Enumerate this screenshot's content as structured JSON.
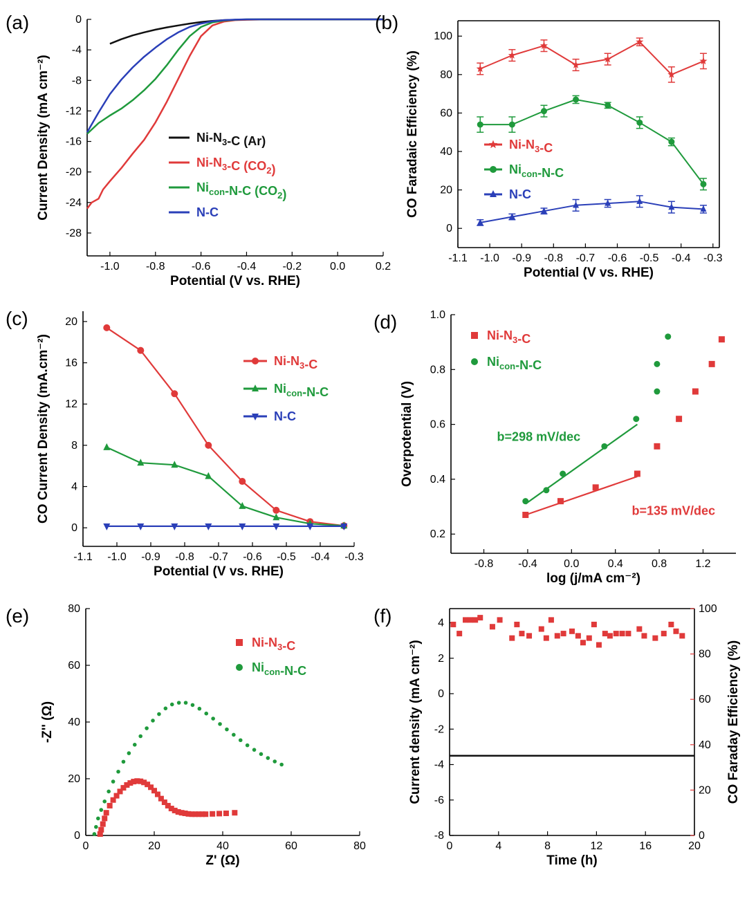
{
  "colors": {
    "black": "#111111",
    "red": "#e03a3a",
    "green": "#1f9a3c",
    "blue": "#2a3fb8",
    "red_axis": "#e03a3a"
  },
  "chart_data": [
    {
      "panel": "(a)",
      "type": "line",
      "xlabel": "Potential (V vs. RHE)",
      "ylabel": "Current Density (mA cm⁻²)",
      "xlim": [
        -1.1,
        0.2
      ],
      "ylim": [
        -31,
        0
      ],
      "xticks": [
        -1.0,
        -0.8,
        -0.6,
        -0.4,
        -0.2,
        0.0,
        0.2
      ],
      "xtick_labels": [
        "-1.0",
        "-0.8",
        "-0.6",
        "-0.4",
        "-0.2",
        "0.0",
        "0.2"
      ],
      "yticks": [
        0,
        -4,
        -8,
        -12,
        -16,
        -20,
        -24,
        -28
      ],
      "ytick_labels": [
        "0",
        "-4",
        "-8",
        "-12",
        "-16",
        "-20",
        "-24",
        "-28"
      ],
      "legend_position": "center",
      "series": [
        {
          "name": "Ni-N₃-C (Ar)",
          "color": "#111111",
          "x": [
            -1.0,
            -0.95,
            -0.9,
            -0.85,
            -0.8,
            -0.75,
            -0.7,
            -0.65,
            -0.6,
            -0.55,
            -0.5,
            -0.45,
            -0.4,
            -0.3,
            -0.2,
            -0.1,
            0.0,
            0.1,
            0.2
          ],
          "y": [
            -3.2,
            -2.6,
            -2.1,
            -1.7,
            -1.35,
            -1.05,
            -0.8,
            -0.55,
            -0.35,
            -0.2,
            -0.1,
            -0.05,
            -0.02,
            0,
            0,
            0,
            0,
            0,
            0
          ]
        },
        {
          "name": "Ni-N₃-C (CO₂)",
          "color": "#e03a3a",
          "x": [
            -1.1,
            -1.08,
            -1.05,
            -1.03,
            -1.0,
            -0.95,
            -0.9,
            -0.85,
            -0.8,
            -0.75,
            -0.7,
            -0.65,
            -0.6,
            -0.55,
            -0.5,
            -0.45,
            -0.4,
            -0.3,
            -0.2,
            -0.1,
            0.0,
            0.1,
            0.2
          ],
          "y": [
            -24.8,
            -24.0,
            -23.5,
            -22.3,
            -21.2,
            -19.5,
            -17.6,
            -15.8,
            -13.5,
            -10.8,
            -7.8,
            -4.8,
            -2.2,
            -0.8,
            -0.3,
            -0.1,
            -0.05,
            0,
            0,
            0,
            0,
            0,
            0
          ]
        },
        {
          "name": "Ni_con-N-C (CO₂)",
          "color": "#1f9a3c",
          "x": [
            -1.1,
            -1.05,
            -1.0,
            -0.95,
            -0.9,
            -0.85,
            -0.8,
            -0.75,
            -0.7,
            -0.65,
            -0.6,
            -0.55,
            -0.5,
            -0.45,
            -0.4,
            -0.3,
            -0.2,
            -0.1,
            0.0,
            0.1,
            0.2
          ],
          "y": [
            -15.0,
            -13.6,
            -12.6,
            -11.7,
            -10.6,
            -9.3,
            -7.8,
            -6.0,
            -4.0,
            -2.2,
            -1.0,
            -0.4,
            -0.15,
            -0.05,
            0,
            0,
            0,
            0,
            0,
            0,
            0
          ]
        },
        {
          "name": "N-C",
          "color": "#2a3fb8",
          "x": [
            -1.1,
            -1.05,
            -1.0,
            -0.95,
            -0.9,
            -0.85,
            -0.8,
            -0.75,
            -0.7,
            -0.65,
            -0.6,
            -0.55,
            -0.5,
            -0.45,
            -0.4,
            -0.3,
            -0.2,
            -0.1,
            0.0,
            0.1,
            0.2
          ],
          "y": [
            -14.8,
            -12.2,
            -9.8,
            -7.9,
            -6.3,
            -4.9,
            -3.7,
            -2.6,
            -1.7,
            -1.0,
            -0.55,
            -0.25,
            -0.1,
            -0.04,
            0,
            0,
            0,
            0,
            0,
            0,
            0
          ]
        }
      ]
    },
    {
      "panel": "(b)",
      "type": "line",
      "xlabel": "Potential (V vs. RHE)",
      "ylabel": "CO Faradaic Efficiency (%)",
      "xlim": [
        -1.1,
        -0.28
      ],
      "ylim": [
        -10,
        108
      ],
      "xticks": [
        -1.1,
        -1.0,
        -0.9,
        -0.8,
        -0.7,
        -0.6,
        -0.5,
        -0.4,
        -0.3
      ],
      "xtick_labels": [
        "-1.1",
        "-1.0",
        "-0.9",
        "-0.8",
        "-0.7",
        "-0.6",
        "-0.5",
        "-0.4",
        "-0.3"
      ],
      "yticks": [
        0,
        20,
        40,
        60,
        80,
        100
      ],
      "ytick_labels": [
        "0",
        "20",
        "40",
        "60",
        "80",
        "100"
      ],
      "legend_position": "center-left",
      "x": [
        -1.03,
        -0.93,
        -0.83,
        -0.73,
        -0.63,
        -0.53,
        -0.43,
        -0.33
      ],
      "series": [
        {
          "name": "Ni-N₃-C",
          "color": "#e03a3a",
          "marker": "star",
          "y": [
            83,
            90,
            95,
            85,
            88,
            97,
            80,
            87
          ],
          "err": [
            3,
            3,
            3,
            3,
            3,
            2,
            4,
            4
          ]
        },
        {
          "name": "Ni_con-N-C",
          "color": "#1f9a3c",
          "marker": "circle",
          "y": [
            54,
            54,
            61,
            67,
            64,
            55,
            45,
            23
          ],
          "err": [
            4,
            4,
            3,
            2,
            1.5,
            3,
            2,
            3
          ]
        },
        {
          "name": "N-C",
          "color": "#2a3fb8",
          "marker": "triangle-up",
          "y": [
            3,
            6,
            9,
            12,
            13,
            14,
            11,
            10
          ],
          "err": [
            1.5,
            1.5,
            1.5,
            3,
            2,
            3,
            3,
            2
          ]
        }
      ]
    },
    {
      "panel": "(c)",
      "type": "line",
      "xlabel": "Potential (V vs. RHE)",
      "ylabel": "CO Current  Density (mA.cm⁻²)",
      "xlim": [
        -1.1,
        -0.3
      ],
      "ylim": [
        -1.8,
        21
      ],
      "xticks": [
        -1.1,
        -1.0,
        -0.9,
        -0.8,
        -0.7,
        -0.6,
        -0.5,
        -0.4,
        -0.3
      ],
      "xtick_labels": [
        "-1.1",
        "-1.0",
        "-0.9",
        "-0.8",
        "-0.7",
        "-0.6",
        "-0.5",
        "-0.4",
        "-0.3"
      ],
      "yticks": [
        0,
        4,
        8,
        12,
        16,
        20
      ],
      "ytick_labels": [
        "0",
        "4",
        "8",
        "12",
        "16",
        "20"
      ],
      "legend_position": "top-right",
      "x": [
        -1.03,
        -0.93,
        -0.83,
        -0.73,
        -0.63,
        -0.53,
        -0.43,
        -0.33
      ],
      "series": [
        {
          "name": "Ni-N₃-C",
          "color": "#e03a3a",
          "marker": "circle",
          "y": [
            19.4,
            17.2,
            13.0,
            8.0,
            4.5,
            1.7,
            0.6,
            0.2
          ]
        },
        {
          "name": "Ni_con-N-C",
          "color": "#1f9a3c",
          "marker": "triangle-up",
          "y": [
            7.8,
            6.3,
            6.1,
            5.0,
            2.1,
            1.0,
            0.4,
            0.2
          ]
        },
        {
          "name": "N-C",
          "color": "#2a3fb8",
          "marker": "triangle-down",
          "y": [
            0.15,
            0.15,
            0.15,
            0.15,
            0.15,
            0.15,
            0.15,
            0.15
          ]
        }
      ]
    },
    {
      "panel": "(d)",
      "type": "scatter",
      "xlabel": "log (j/mA cm⁻²)",
      "ylabel": "Overpotential (V)",
      "xlim": [
        -1.1,
        1.5
      ],
      "ylim": [
        0.13,
        1.0
      ],
      "xticks": [
        -0.8,
        -0.4,
        0.0,
        0.4,
        0.8,
        1.2
      ],
      "xtick_labels": [
        "-0.8",
        "-0.4",
        "0.0",
        "0.4",
        "0.8",
        "1.2"
      ],
      "yticks": [
        0.2,
        0.4,
        0.6,
        0.8,
        1.0
      ],
      "ytick_labels": [
        "0.2",
        "0.4",
        "0.6",
        "0.8",
        "1.0"
      ],
      "legend_position": "top-left",
      "series": [
        {
          "name": "Ni-N₃-C",
          "color": "#e03a3a",
          "marker": "square",
          "x": [
            -0.42,
            -0.1,
            0.22,
            0.6,
            0.78,
            0.98,
            1.13,
            1.28,
            1.37
          ],
          "y": [
            0.27,
            0.32,
            0.37,
            0.42,
            0.52,
            0.62,
            0.72,
            0.82,
            0.91
          ]
        },
        {
          "name": "Ni_con-N-C",
          "color": "#1f9a3c",
          "marker": "circle",
          "x": [
            -0.42,
            -0.23,
            -0.08,
            0.3,
            0.59,
            0.78,
            0.78,
            0.88
          ],
          "y": [
            0.32,
            0.36,
            0.42,
            0.52,
            0.62,
            0.72,
            0.82,
            0.92
          ]
        }
      ],
      "fits": [
        {
          "color": "#e03a3a",
          "x": [
            -0.42,
            0.6
          ],
          "y": [
            0.27,
            0.41
          ]
        },
        {
          "color": "#1f9a3c",
          "x": [
            -0.42,
            0.6
          ],
          "y": [
            0.31,
            0.6
          ]
        }
      ],
      "annotations": [
        {
          "text": "b=298 mV/dec",
          "color": "#1f9a3c",
          "x": -0.68,
          "y": 0.54
        },
        {
          "text": "b=135 mV/dec",
          "color": "#e03a3a",
          "x": 0.55,
          "y": 0.27
        }
      ]
    },
    {
      "panel": "(e)",
      "type": "scatter",
      "xlabel": "Z' (Ω)",
      "ylabel": "-Z'' (Ω)",
      "xlim": [
        0,
        80
      ],
      "ylim": [
        0,
        80
      ],
      "xticks": [
        0,
        20,
        40,
        60,
        80
      ],
      "xtick_labels": [
        "0",
        "20",
        "40",
        "60",
        "80"
      ],
      "yticks": [
        0,
        20,
        40,
        60,
        80
      ],
      "ytick_labels": [
        "0",
        "20",
        "40",
        "60",
        "80"
      ],
      "legend_position": "top-right",
      "series": [
        {
          "name": "Ni-N₃-C",
          "color": "#e03a3a",
          "marker": "square",
          "x": [
            4.2,
            4.5,
            5,
            5.5,
            6,
            7,
            8,
            9,
            10,
            11,
            12,
            13,
            14,
            15,
            16,
            17,
            18,
            19,
            20,
            21,
            22,
            23,
            24,
            25,
            26,
            27,
            28,
            29,
            30,
            31,
            32,
            33,
            34,
            35,
            37,
            39,
            41,
            43.5
          ],
          "y": [
            0.5,
            2,
            4,
            6,
            8,
            10.5,
            12.5,
            14,
            15.5,
            16.8,
            17.8,
            18.5,
            19,
            19.2,
            19.1,
            18.7,
            18,
            17,
            15.8,
            14.5,
            13,
            11.7,
            10.5,
            9.5,
            8.8,
            8.3,
            8,
            7.8,
            7.6,
            7.5,
            7.5,
            7.5,
            7.5,
            7.5,
            7.6,
            7.7,
            7.8,
            8
          ]
        },
        {
          "name": "Ni_con-N-C",
          "color": "#1f9a3c",
          "marker": "circle",
          "x": [
            2.5,
            3,
            3.6,
            4.5,
            5.5,
            6.7,
            8,
            9.5,
            11,
            12.6,
            14.3,
            16,
            17.8,
            19.6,
            21.4,
            23.3,
            25.2,
            27.2,
            29.2,
            31.2,
            33.2,
            35.2,
            37.2,
            39.2,
            41.2,
            43.2,
            45.2,
            47.2,
            49.2,
            51.2,
            53.2,
            55.2,
            57.2
          ],
          "y": [
            0.5,
            3,
            6,
            9,
            12,
            15.5,
            19,
            22.5,
            26,
            29,
            32,
            35,
            37.8,
            40.5,
            42.8,
            44.8,
            46.2,
            46.8,
            46.8,
            46,
            44.7,
            43,
            41.2,
            39.3,
            37.4,
            35.5,
            33.6,
            31.8,
            30.2,
            28.7,
            27.3,
            26.1,
            25
          ]
        }
      ]
    },
    {
      "panel": "(f)",
      "type": "line",
      "xlabel": "Time (h)",
      "ylabel": "Current density (mA cm⁻²)",
      "ylabel_right": "CO Faraday Efficiency (%)",
      "xlim": [
        0,
        20
      ],
      "ylim": [
        -8,
        4.8
      ],
      "ylim_right": [
        0,
        100
      ],
      "xticks": [
        0,
        4,
        8,
        12,
        16,
        20
      ],
      "xtick_labels": [
        "0",
        "4",
        "8",
        "12",
        "16",
        "20"
      ],
      "yticks": [
        -8,
        -6,
        -4,
        -2,
        0,
        2,
        4
      ],
      "ytick_labels": [
        "-8",
        "-6",
        "-4",
        "-2",
        "0",
        "2",
        "4"
      ],
      "yticks_right": [
        0,
        20,
        40,
        60,
        80,
        100
      ],
      "ytick_labels_right": [
        "0",
        "20",
        "40",
        "60",
        "80",
        "100"
      ],
      "current": {
        "color": "#111111",
        "x": [
          0,
          20
        ],
        "y": [
          -3.5,
          -3.5
        ]
      },
      "fe": {
        "color": "#e03a3a",
        "marker": "square",
        "x": [
          0.3,
          0.8,
          1.3,
          1.7,
          2.1,
          2.5,
          3.5,
          4.1,
          5.1,
          5.5,
          5.9,
          6.5,
          7.5,
          7.9,
          8.3,
          8.8,
          9.3,
          10.0,
          10.5,
          10.9,
          11.4,
          11.8,
          12.2,
          12.7,
          13.1,
          13.6,
          14.1,
          14.6,
          15.5,
          15.9,
          16.8,
          17.5,
          18.1,
          18.5,
          19.0
        ],
        "y": [
          93,
          89,
          95,
          95,
          95,
          96,
          92,
          95,
          87,
          93,
          89,
          88,
          91,
          87,
          95,
          88,
          89,
          90,
          88,
          85,
          87,
          93,
          84,
          89,
          88,
          89,
          89,
          89,
          91,
          88,
          87,
          89,
          93,
          90,
          88
        ]
      }
    }
  ],
  "legends": {
    "a": [
      {
        "base": "Ni-N",
        "sub": "3",
        "rest": "-C (Ar)",
        "color": "#111111"
      },
      {
        "base": "Ni-N",
        "sub": "3",
        "rest": "-C (CO",
        "sub2": "2",
        "tail": ")",
        "color": "#e03a3a"
      },
      {
        "base": "Ni",
        "sub": "con",
        "rest": "-N-C (CO",
        "sub2": "2",
        "tail": ")",
        "color": "#1f9a3c"
      },
      {
        "base": "N-C",
        "color": "#2a3fb8"
      }
    ],
    "b": [
      {
        "base": "Ni-N",
        "sub": "3",
        "rest": "-C",
        "color": "#e03a3a"
      },
      {
        "base": "Ni",
        "sub": "con",
        "rest": "-N-C",
        "color": "#1f9a3c"
      },
      {
        "base": "N-C",
        "color": "#2a3fb8"
      }
    ],
    "c": [
      {
        "base": "Ni-N",
        "sub": "3",
        "rest": "-C",
        "color": "#e03a3a"
      },
      {
        "base": "Ni",
        "sub": "con",
        "rest": "-N-C",
        "color": "#1f9a3c"
      },
      {
        "base": "N-C",
        "color": "#2a3fb8"
      }
    ],
    "d": [
      {
        "base": "Ni-N",
        "sub": "3",
        "rest": "-C",
        "color": "#e03a3a"
      },
      {
        "base": "Ni",
        "sub": "con",
        "rest": "-N-C",
        "color": "#1f9a3c"
      }
    ],
    "e": [
      {
        "base": "Ni-N",
        "sub": "3",
        "rest": "-C",
        "color": "#e03a3a"
      },
      {
        "base": "Ni",
        "sub": "con",
        "rest": "-N-C",
        "color": "#1f9a3c"
      }
    ]
  }
}
